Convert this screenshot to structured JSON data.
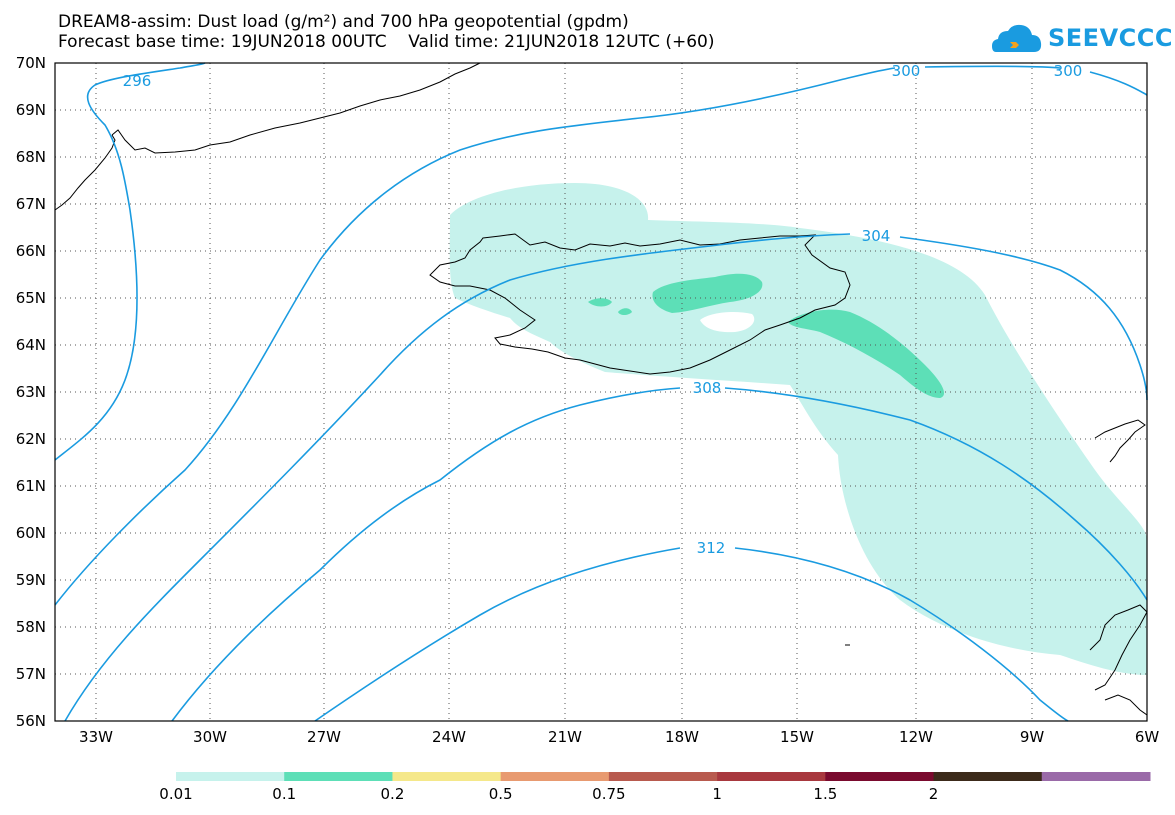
{
  "title_line1": "DREAM8-assim: Dust load (g/m²) and 700 hPa geopotential (gpdm)",
  "title_line2": "Forecast base time: 19JUN2018 00UTC    Valid time: 21JUN2018 12UTC (+60)",
  "logo_text": "SEEVCCC",
  "logo_icon": "cloud-icon",
  "lat_labels": [
    "70N",
    "69N",
    "68N",
    "67N",
    "66N",
    "65N",
    "64N",
    "63N",
    "62N",
    "61N",
    "60N",
    "59N",
    "58N",
    "57N",
    "56N"
  ],
  "lon_labels": [
    "33W",
    "30W",
    "27W",
    "24W",
    "21W",
    "18W",
    "15W",
    "12W",
    "9W",
    "6W"
  ],
  "contour_labels": [
    "296",
    "300",
    "300",
    "304",
    "308",
    "312"
  ],
  "colorbar": {
    "labels": [
      "0.01",
      "0.1",
      "0.2",
      "0.5",
      "0.75",
      "1",
      "1.5",
      "2"
    ],
    "colors": [
      "#c6f2ec",
      "#5ddfb7",
      "#f5e88a",
      "#e89a70",
      "#b85a4e",
      "#a8383e",
      "#7a0a2e",
      "#3c2a1a",
      "#9a6aa8"
    ]
  },
  "colors": {
    "contour": "#1a9be0",
    "dust_low": "#c6f2ec",
    "dust_mid": "#5ddfb7"
  }
}
